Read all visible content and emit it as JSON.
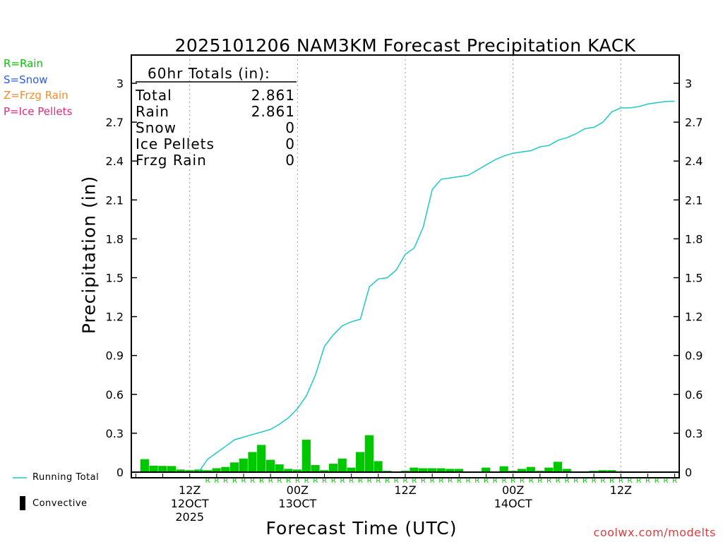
{
  "colors": {
    "rain": "#00c800",
    "snow": "#2e5ce6",
    "frzg_rain": "#f28c28",
    "ice_pellets": "#e0287c",
    "running_total": "#1ec8c8",
    "convective": "#000000",
    "grid": "#999999",
    "credit": "#e03c3c"
  },
  "legend": {
    "rain": "R=Rain",
    "snow": "S=Snow",
    "frzg_rain": "Z=Frzg Rain",
    "ice_pellets": "P=Ice Pellets",
    "running_total": "Running Total",
    "convective": "Convective"
  },
  "credit": "coolwx.com/modelts",
  "totals": {
    "heading": "60hr Totals (in):",
    "rows": [
      {
        "label": "Total",
        "value": "2.861"
      },
      {
        "label": "Rain",
        "value": "2.861"
      },
      {
        "label": "Snow",
        "value": "0"
      },
      {
        "label": "Ice Pellets",
        "value": "0"
      },
      {
        "label": "Frzg Rain",
        "value": "0"
      }
    ]
  },
  "chart_data": {
    "type": "bar",
    "title": "2025101206 NAM3KM Forecast Precipitation KACK",
    "xlabel": "Forecast Time (UTC)",
    "ylabel": "Precipitation (in)",
    "ylim": [
      0,
      3.15
    ],
    "yticks": [
      "0",
      "0.3",
      "0.6",
      "0.9",
      "1.2",
      "1.5",
      "1.8",
      "2.1",
      "2.4",
      "2.7",
      "3"
    ],
    "forecast_hours": [
      1,
      2,
      3,
      4,
      5,
      6,
      7,
      8,
      9,
      10,
      11,
      12,
      13,
      14,
      15,
      16,
      17,
      18,
      19,
      20,
      21,
      22,
      23,
      24,
      25,
      26,
      27,
      28,
      29,
      30,
      31,
      32,
      33,
      34,
      35,
      36,
      37,
      38,
      39,
      40,
      41,
      42,
      43,
      44,
      45,
      46,
      47,
      48,
      49,
      50,
      51,
      52,
      53,
      54,
      55,
      56,
      57,
      58,
      59,
      60
    ],
    "series": [
      {
        "name": "Rain",
        "values": [
          0.1,
          0.05,
          0.048,
          0.047,
          0.02,
          0.015,
          0.02,
          0.015,
          0.03,
          0.04,
          0.075,
          0.105,
          0.155,
          0.21,
          0.095,
          0.06,
          0.025,
          0.02,
          0.25,
          0.055,
          0.015,
          0.065,
          0.105,
          0.035,
          0.155,
          0.285,
          0.085,
          0.01,
          0.005,
          0.01,
          0.035,
          0.03,
          0.03,
          0.03,
          0.025,
          0.025,
          0.005,
          0.005,
          0.035,
          0.005,
          0.045,
          0.01,
          0.025,
          0.04,
          0.01,
          0.035,
          0.08,
          0.025,
          0.005,
          0.0,
          0.01,
          0.015,
          0.015,
          0.005,
          0.0,
          0.0,
          0.0,
          0.0,
          0.0,
          0.0
        ]
      },
      {
        "name": "Running Total",
        "values": [
          0.0,
          0.0,
          0.0,
          0.0,
          0.0,
          0.0,
          0.0,
          0.1,
          0.15,
          0.2,
          0.25,
          0.27,
          0.29,
          0.31,
          0.33,
          0.37,
          0.42,
          0.49,
          0.59,
          0.75,
          0.97,
          1.06,
          1.13,
          1.16,
          1.18,
          1.43,
          1.49,
          1.5,
          1.56,
          1.68,
          1.73,
          1.89,
          2.18,
          2.26,
          2.27,
          2.28,
          2.29,
          2.33,
          2.37,
          2.41,
          2.44,
          2.46,
          2.47,
          2.48,
          2.51,
          2.52,
          2.56,
          2.58,
          2.61,
          2.65,
          2.66,
          2.7,
          2.78,
          2.81,
          2.81,
          2.82,
          2.84,
          2.85,
          2.86,
          2.861
        ]
      }
    ],
    "convective": [],
    "ptype_markers": "R",
    "x_ticks": [
      {
        "hour": 6,
        "label": "12Z",
        "sub": "12OCT",
        "year": "2025"
      },
      {
        "hour": 18,
        "label": "00Z",
        "sub": "13OCT",
        "year": ""
      },
      {
        "hour": 30,
        "label": "12Z",
        "sub": "",
        "year": ""
      },
      {
        "hour": 42,
        "label": "00Z",
        "sub": "14OCT",
        "year": ""
      },
      {
        "hour": 54,
        "label": "12Z",
        "sub": "",
        "year": ""
      }
    ],
    "x_range": [
      -0.5,
      60.5
    ]
  }
}
